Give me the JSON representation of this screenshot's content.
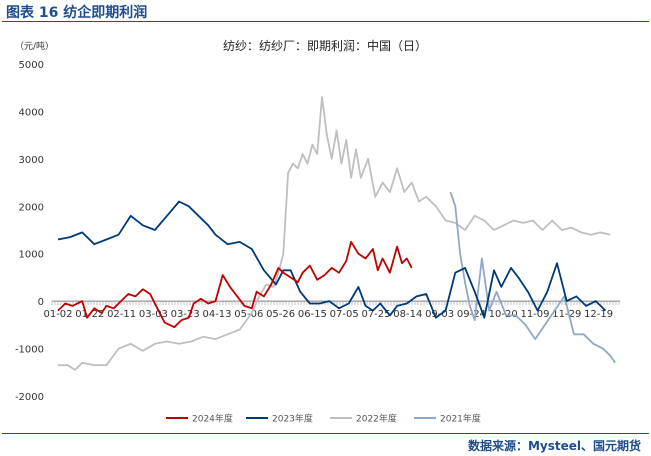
{
  "figure_label": "图表 16  纺企即期利润",
  "source_text": "数据来源：Mysteel、国元期货",
  "chart_data": {
    "type": "line",
    "title": "纺纱：纺纱厂：即期利润：中国（日）",
    "ylabel": "（元/吨）",
    "ylim": [
      -2000,
      5000
    ],
    "yticks": [
      -2000,
      -1000,
      0,
      1000,
      2000,
      3000,
      4000,
      5000
    ],
    "x_categories": [
      "01-02",
      "01-22",
      "02-11",
      "03-03",
      "03-23",
      "04-13",
      "05-06",
      "05-26",
      "06-15",
      "07-05",
      "07-25",
      "08-14",
      "09-03",
      "09-24",
      "10-20",
      "11-09",
      "11-29",
      "12-19"
    ],
    "grid": false,
    "legend_position": "bottom",
    "series": [
      {
        "name": "2024年度",
        "color": "#c00000",
        "points": [
          [
            0,
            -200
          ],
          [
            0.3,
            -50
          ],
          [
            0.6,
            -100
          ],
          [
            1,
            0
          ],
          [
            1.2,
            -350
          ],
          [
            1.5,
            -150
          ],
          [
            1.8,
            -250
          ],
          [
            2,
            -100
          ],
          [
            2.3,
            -150
          ],
          [
            2.6,
            0
          ],
          [
            2.9,
            150
          ],
          [
            3.2,
            100
          ],
          [
            3.5,
            250
          ],
          [
            3.8,
            150
          ],
          [
            4.1,
            -150
          ],
          [
            4.4,
            -450
          ],
          [
            4.8,
            -550
          ],
          [
            5.1,
            -400
          ],
          [
            5.4,
            -350
          ],
          [
            5.6,
            -50
          ],
          [
            5.9,
            50
          ],
          [
            6.2,
            -50
          ],
          [
            6.5,
            0
          ],
          [
            6.8,
            550
          ],
          [
            7.1,
            300
          ],
          [
            7.4,
            100
          ],
          [
            7.7,
            -100
          ],
          [
            8.0,
            -150
          ],
          [
            8.2,
            200
          ],
          [
            8.5,
            100
          ],
          [
            8.8,
            350
          ],
          [
            9.1,
            700
          ],
          [
            9.3,
            600
          ],
          [
            9.6,
            500
          ],
          [
            9.9,
            400
          ],
          [
            10.1,
            600
          ],
          [
            10.4,
            750
          ],
          [
            10.7,
            450
          ],
          [
            11.0,
            550
          ],
          [
            11.3,
            700
          ],
          [
            11.6,
            600
          ],
          [
            11.9,
            850
          ],
          [
            12.1,
            1250
          ],
          [
            12.4,
            1000
          ],
          [
            12.7,
            900
          ],
          [
            13.0,
            1100
          ],
          [
            13.2,
            650
          ],
          [
            13.4,
            900
          ],
          [
            13.7,
            600
          ],
          [
            14.0,
            1150
          ],
          [
            14.2,
            800
          ],
          [
            14.4,
            900
          ],
          [
            14.6,
            700
          ]
        ]
      },
      {
        "name": "2023年度",
        "color": "#003a75",
        "points": [
          [
            0,
            1300
          ],
          [
            0.5,
            1350
          ],
          [
            1,
            1450
          ],
          [
            1.5,
            1200
          ],
          [
            2,
            1300
          ],
          [
            2.5,
            1400
          ],
          [
            3,
            1800
          ],
          [
            3.5,
            1600
          ],
          [
            4,
            1500
          ],
          [
            4.5,
            1800
          ],
          [
            5,
            2100
          ],
          [
            5.4,
            2000
          ],
          [
            5.8,
            1800
          ],
          [
            6.2,
            1600
          ],
          [
            6.5,
            1400
          ],
          [
            7,
            1200
          ],
          [
            7.5,
            1250
          ],
          [
            8,
            1100
          ],
          [
            8.5,
            650
          ],
          [
            9,
            350
          ],
          [
            9.3,
            650
          ],
          [
            9.6,
            650
          ],
          [
            10,
            200
          ],
          [
            10.4,
            -50
          ],
          [
            10.8,
            -50
          ],
          [
            11.2,
            0
          ],
          [
            11.6,
            -150
          ],
          [
            12,
            -50
          ],
          [
            12.4,
            300
          ],
          [
            12.7,
            -100
          ],
          [
            13,
            -200
          ],
          [
            13.3,
            -50
          ],
          [
            13.7,
            -300
          ],
          [
            14,
            -100
          ],
          [
            14.4,
            -50
          ],
          [
            14.8,
            100
          ],
          [
            15.2,
            150
          ],
          [
            15.6,
            -350
          ],
          [
            16,
            -200
          ],
          [
            16.4,
            600
          ],
          [
            16.8,
            700
          ],
          [
            17.2,
            200
          ],
          [
            17.6,
            -350
          ],
          [
            18,
            650
          ],
          [
            18.3,
            300
          ],
          [
            18.7,
            700
          ],
          [
            19,
            500
          ],
          [
            19.4,
            200
          ],
          [
            19.8,
            -200
          ],
          [
            20.2,
            200
          ],
          [
            20.6,
            800
          ],
          [
            21,
            0
          ],
          [
            21.4,
            100
          ],
          [
            21.8,
            -100
          ],
          [
            22.2,
            0
          ],
          [
            22.6,
            -200
          ]
        ]
      },
      {
        "name": "2022年度",
        "color": "#bfbfbf",
        "points": [
          [
            0,
            -1350
          ],
          [
            0.4,
            -1350
          ],
          [
            0.7,
            -1450
          ],
          [
            1,
            -1300
          ],
          [
            1.5,
            -1350
          ],
          [
            2,
            -1350
          ],
          [
            2.5,
            -1000
          ],
          [
            3,
            -900
          ],
          [
            3.5,
            -1050
          ],
          [
            4,
            -900
          ],
          [
            4.5,
            -850
          ],
          [
            5,
            -900
          ],
          [
            5.5,
            -850
          ],
          [
            6,
            -750
          ],
          [
            6.5,
            -800
          ],
          [
            7,
            -700
          ],
          [
            7.5,
            -600
          ],
          [
            8,
            -250
          ],
          [
            8.3,
            100
          ],
          [
            8.6,
            350
          ],
          [
            8.9,
            300
          ],
          [
            9.1,
            600
          ],
          [
            9.3,
            1000
          ],
          [
            9.5,
            2700
          ],
          [
            9.7,
            2900
          ],
          [
            9.9,
            2800
          ],
          [
            10.1,
            3100
          ],
          [
            10.3,
            2900
          ],
          [
            10.5,
            3300
          ],
          [
            10.7,
            3100
          ],
          [
            10.9,
            4300
          ],
          [
            11.1,
            3500
          ],
          [
            11.3,
            3000
          ],
          [
            11.5,
            3600
          ],
          [
            11.7,
            2900
          ],
          [
            11.9,
            3400
          ],
          [
            12.1,
            2600
          ],
          [
            12.3,
            3200
          ],
          [
            12.5,
            2600
          ],
          [
            12.8,
            3000
          ],
          [
            13.1,
            2200
          ],
          [
            13.4,
            2500
          ],
          [
            13.7,
            2300
          ],
          [
            14.0,
            2800
          ],
          [
            14.3,
            2300
          ],
          [
            14.6,
            2500
          ],
          [
            14.9,
            2100
          ],
          [
            15.2,
            2200
          ],
          [
            15.6,
            2000
          ],
          [
            16.0,
            1700
          ],
          [
            16.4,
            1650
          ],
          [
            16.8,
            1500
          ],
          [
            17.2,
            1800
          ],
          [
            17.6,
            1700
          ],
          [
            18.0,
            1500
          ],
          [
            18.4,
            1600
          ],
          [
            18.8,
            1700
          ],
          [
            19.2,
            1650
          ],
          [
            19.6,
            1700
          ],
          [
            20.0,
            1500
          ],
          [
            20.4,
            1700
          ],
          [
            20.8,
            1500
          ],
          [
            21.2,
            1550
          ],
          [
            21.6,
            1450
          ],
          [
            22.0,
            1400
          ],
          [
            22.4,
            1450
          ],
          [
            22.8,
            1400
          ]
        ]
      },
      {
        "name": "2021年度",
        "color": "#8fa8c8",
        "points": [
          [
            16.2,
            2300
          ],
          [
            16.4,
            2000
          ],
          [
            16.6,
            1000
          ],
          [
            16.8,
            400
          ],
          [
            17.0,
            -100
          ],
          [
            17.2,
            -400
          ],
          [
            17.5,
            900
          ],
          [
            17.8,
            -200
          ],
          [
            18.1,
            200
          ],
          [
            18.5,
            -300
          ],
          [
            18.9,
            -300
          ],
          [
            19.3,
            -500
          ],
          [
            19.7,
            -800
          ],
          [
            20.1,
            -500
          ],
          [
            20.5,
            -200
          ],
          [
            20.9,
            100
          ],
          [
            21.3,
            -700
          ],
          [
            21.7,
            -700
          ],
          [
            22.1,
            -900
          ],
          [
            22.5,
            -1000
          ],
          [
            22.8,
            -1150
          ],
          [
            23.0,
            -1300
          ]
        ]
      }
    ]
  }
}
